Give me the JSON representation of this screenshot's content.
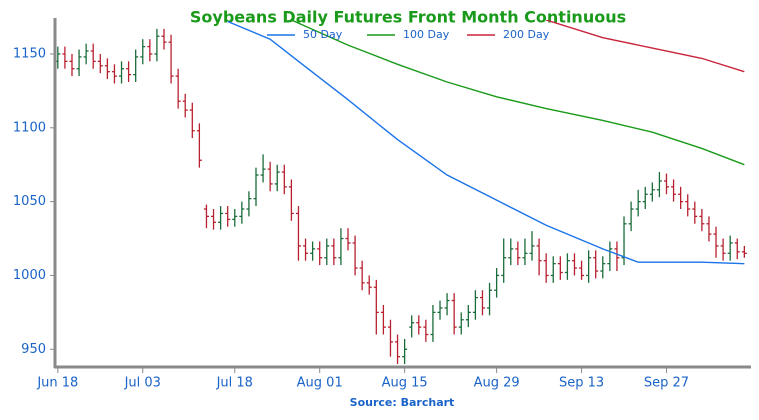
{
  "chart_data": {
    "type": "ohlc",
    "title": "Soybeans Daily Futures Front Month Continuous",
    "source": "Source: Barchart",
    "x": [
      0,
      1,
      2,
      3,
      4,
      5,
      6,
      7,
      8,
      9,
      10,
      11,
      12,
      13,
      14,
      15,
      16,
      17,
      18,
      19,
      20,
      21,
      22,
      23,
      24,
      25,
      26,
      27,
      28,
      29,
      30,
      31,
      32,
      33,
      34,
      35,
      36,
      37,
      38,
      39,
      40,
      41,
      42,
      43,
      44,
      45,
      46,
      47,
      48,
      49,
      50,
      51,
      52,
      53,
      54,
      55,
      56,
      57,
      58,
      59,
      60,
      61,
      62,
      63,
      64,
      65,
      66,
      67,
      68,
      69,
      70,
      71,
      72,
      73,
      74,
      75,
      76,
      77,
      78,
      79,
      80,
      81,
      82,
      83,
      84,
      85,
      86,
      87,
      88,
      89,
      90,
      91,
      92,
      93,
      94,
      95,
      96,
      97
    ],
    "open": [
      1145,
      1150,
      1145,
      1140,
      1148,
      1152,
      1145,
      1142,
      1138,
      1135,
      1140,
      1136,
      1148,
      1155,
      1150,
      1162,
      1158,
      1135,
      1118,
      1112,
      1098,
      1045,
      1040,
      1036,
      1042,
      1038,
      1040,
      1045,
      1052,
      1068,
      1072,
      1062,
      1070,
      1060,
      1042,
      1020,
      1015,
      1018,
      1012,
      1020,
      1012,
      1025,
      1022,
      1005,
      995,
      992,
      975,
      965,
      955,
      945,
      965,
      968,
      965,
      960,
      975,
      978,
      983,
      965,
      970,
      975,
      985,
      978,
      990,
      1000,
      1012,
      1018,
      1012,
      1015,
      1020,
      1010,
      1000,
      1008,
      1002,
      1010,
      1005,
      1000,
      1012,
      1003,
      1008,
      1018,
      1012,
      1035,
      1045,
      1050,
      1055,
      1058,
      1064,
      1060,
      1055,
      1050,
      1045,
      1040,
      1035,
      1028,
      1020,
      1015,
      1022,
      1016
    ],
    "high": [
      1155,
      1155,
      1150,
      1153,
      1157,
      1157,
      1150,
      1147,
      1143,
      1145,
      1145,
      1153,
      1160,
      1160,
      1167,
      1167,
      1163,
      1140,
      1123,
      1117,
      1103,
      1048,
      1045,
      1047,
      1047,
      1045,
      1050,
      1057,
      1073,
      1082,
      1077,
      1075,
      1075,
      1065,
      1047,
      1025,
      1023,
      1023,
      1025,
      1025,
      1032,
      1032,
      1027,
      1010,
      1000,
      997,
      980,
      970,
      960,
      957,
      973,
      973,
      970,
      980,
      983,
      988,
      988,
      975,
      980,
      990,
      990,
      995,
      1005,
      1025,
      1025,
      1023,
      1025,
      1030,
      1025,
      1015,
      1013,
      1013,
      1015,
      1015,
      1010,
      1017,
      1017,
      1013,
      1023,
      1023,
      1040,
      1050,
      1058,
      1060,
      1063,
      1070,
      1069,
      1065,
      1060,
      1055,
      1050,
      1045,
      1040,
      1033,
      1025,
      1027,
      1025,
      1020
    ],
    "low": [
      1140,
      1140,
      1135,
      1135,
      1143,
      1140,
      1137,
      1133,
      1130,
      1130,
      1131,
      1131,
      1143,
      1145,
      1145,
      1153,
      1130,
      1113,
      1107,
      1093,
      1073,
      1032,
      1031,
      1031,
      1033,
      1033,
      1035,
      1040,
      1047,
      1063,
      1057,
      1057,
      1055,
      1037,
      1010,
      1010,
      1010,
      1007,
      1007,
      1007,
      1007,
      1017,
      1000,
      990,
      987,
      960,
      960,
      945,
      940,
      940,
      958,
      960,
      955,
      955,
      970,
      973,
      960,
      960,
      965,
      970,
      973,
      973,
      985,
      995,
      1007,
      1007,
      1007,
      1010,
      1000,
      995,
      995,
      997,
      997,
      1000,
      997,
      995,
      998,
      998,
      1003,
      1003,
      1007,
      1030,
      1040,
      1045,
      1050,
      1053,
      1055,
      1050,
      1045,
      1040,
      1035,
      1030,
      1023,
      1012,
      1010,
      1010,
      1011,
      1012
    ],
    "close": [
      1150,
      1145,
      1140,
      1148,
      1152,
      1145,
      1142,
      1138,
      1135,
      1140,
      1136,
      1148,
      1155,
      1150,
      1162,
      1158,
      1135,
      1118,
      1112,
      1098,
      1078,
      1040,
      1036,
      1042,
      1038,
      1040,
      1045,
      1052,
      1068,
      1072,
      1062,
      1070,
      1060,
      1042,
      1020,
      1015,
      1018,
      1012,
      1020,
      1012,
      1025,
      1022,
      1005,
      995,
      992,
      975,
      965,
      955,
      945,
      950,
      968,
      965,
      960,
      975,
      978,
      983,
      965,
      970,
      975,
      985,
      978,
      990,
      1000,
      1012,
      1018,
      1012,
      1015,
      1020,
      1010,
      1000,
      1008,
      1002,
      1010,
      1005,
      1000,
      1012,
      1003,
      1008,
      1018,
      1012,
      1035,
      1045,
      1050,
      1055,
      1058,
      1064,
      1060,
      1055,
      1050,
      1045,
      1040,
      1035,
      1028,
      1020,
      1015,
      1022,
      1016,
      1015
    ],
    "up_color": "#1a6b3a",
    "down_color": "#b8202f",
    "series": [
      {
        "name": "50 Day",
        "color": "#1a73e8",
        "x": [
          24,
          30,
          34,
          41,
          48,
          55,
          62,
          69,
          77,
          82,
          91,
          97
        ],
        "values": [
          1172,
          1160,
          1145,
          1119,
          1092,
          1068,
          1051,
          1034,
          1018,
          1009,
          1009,
          1008
        ]
      },
      {
        "name": "100 Day",
        "color": "#1a9a1a",
        "x": [
          33,
          41,
          48,
          55,
          62,
          69,
          77,
          84,
          91,
          97
        ],
        "values": [
          1173,
          1156,
          1143,
          1131,
          1121,
          1113,
          1105,
          1097,
          1086,
          1075
        ]
      },
      {
        "name": "200 Day",
        "color": "#c8243c",
        "x": [
          69,
          77,
          84,
          91,
          97
        ],
        "values": [
          1173,
          1161,
          1154,
          1147,
          1138
        ]
      }
    ],
    "xlim": [
      -0.4,
      97.8
    ],
    "ylim": [
      938,
      1173
    ],
    "yticks": [
      950,
      1000,
      1050,
      1100,
      1150
    ],
    "xticks": [
      {
        "value": 0,
        "label": "Jun 18"
      },
      {
        "value": 12,
        "label": "Jul 03"
      },
      {
        "value": 25,
        "label": "Jul 18"
      },
      {
        "value": 37,
        "label": "Aug 01"
      },
      {
        "value": 49,
        "label": "Aug 15"
      },
      {
        "value": 62,
        "label": "Aug 29"
      },
      {
        "value": 74,
        "label": "Sep 13"
      },
      {
        "value": 86,
        "label": "Sep 27"
      }
    ],
    "legend": "top"
  }
}
